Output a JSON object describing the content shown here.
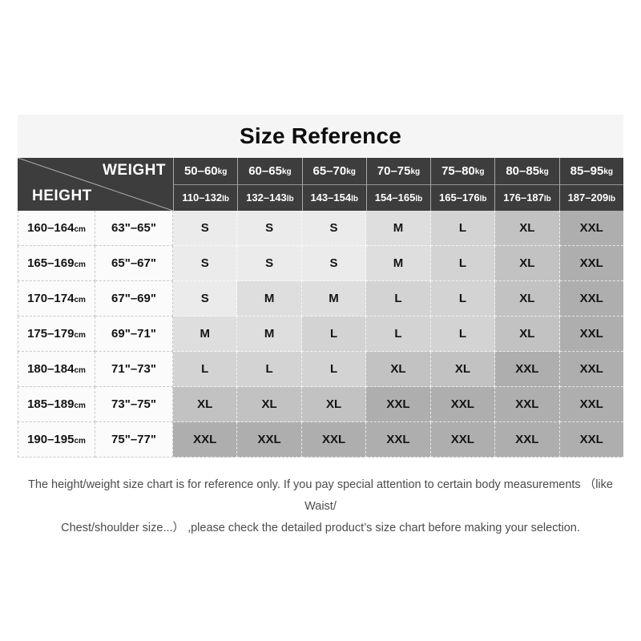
{
  "title": "Size Reference",
  "header": {
    "weight_label": "WEIGHT",
    "height_label": "HEIGHT"
  },
  "units": {
    "kg": "kg",
    "lb": "lb",
    "cm": "cm"
  },
  "colors": {
    "header_bg": "#3d3d3d",
    "title_band_bg": "#f5f5f5",
    "label_col_bg": "#fbfbfb",
    "diagonal_line": "#b0b0b0",
    "size_colors": {
      "S": "#ebebeb",
      "M": "#dedede",
      "L": "#d3d3d3",
      "XL": "#c2c2c2",
      "XXL": "#aeaeae"
    }
  },
  "chart_data": {
    "type": "table",
    "title": "Size Reference",
    "columns_kg": [
      "50–60",
      "60–65",
      "65–70",
      "70–75",
      "75–80",
      "80–85",
      "85–95"
    ],
    "columns_lb": [
      "110–132",
      "132–143",
      "143–154",
      "154–165",
      "165–176",
      "176–187",
      "187–209"
    ],
    "rows": [
      {
        "height_cm": "160–164",
        "height_in": "63\"–65\"",
        "sizes": [
          "S",
          "S",
          "S",
          "M",
          "L",
          "XL",
          "XXL"
        ]
      },
      {
        "height_cm": "165–169",
        "height_in": "65\"–67\"",
        "sizes": [
          "S",
          "S",
          "S",
          "M",
          "L",
          "XL",
          "XXL"
        ]
      },
      {
        "height_cm": "170–174",
        "height_in": "67\"–69\"",
        "sizes": [
          "S",
          "M",
          "M",
          "L",
          "L",
          "XL",
          "XXL"
        ]
      },
      {
        "height_cm": "175–179",
        "height_in": "69\"–71\"",
        "sizes": [
          "M",
          "M",
          "L",
          "L",
          "L",
          "XL",
          "XXL"
        ]
      },
      {
        "height_cm": "180–184",
        "height_in": "71\"–73\"",
        "sizes": [
          "L",
          "L",
          "L",
          "XL",
          "XL",
          "XXL",
          "XXL"
        ]
      },
      {
        "height_cm": "185–189",
        "height_in": "73\"–75\"",
        "sizes": [
          "XL",
          "XL",
          "XL",
          "XXL",
          "XXL",
          "XXL",
          "XXL"
        ]
      },
      {
        "height_cm": "190–195",
        "height_in": "75\"–77\"",
        "sizes": [
          "XXL",
          "XXL",
          "XXL",
          "XXL",
          "XXL",
          "XXL",
          "XXL"
        ]
      }
    ]
  },
  "footer": {
    "line1": "The height/weight size chart is for reference only. If you pay special attention to certain body measurements （like Waist/",
    "line2": "Chest/shoulder size...） ,please check the detailed product’s size chart before making your selection."
  }
}
